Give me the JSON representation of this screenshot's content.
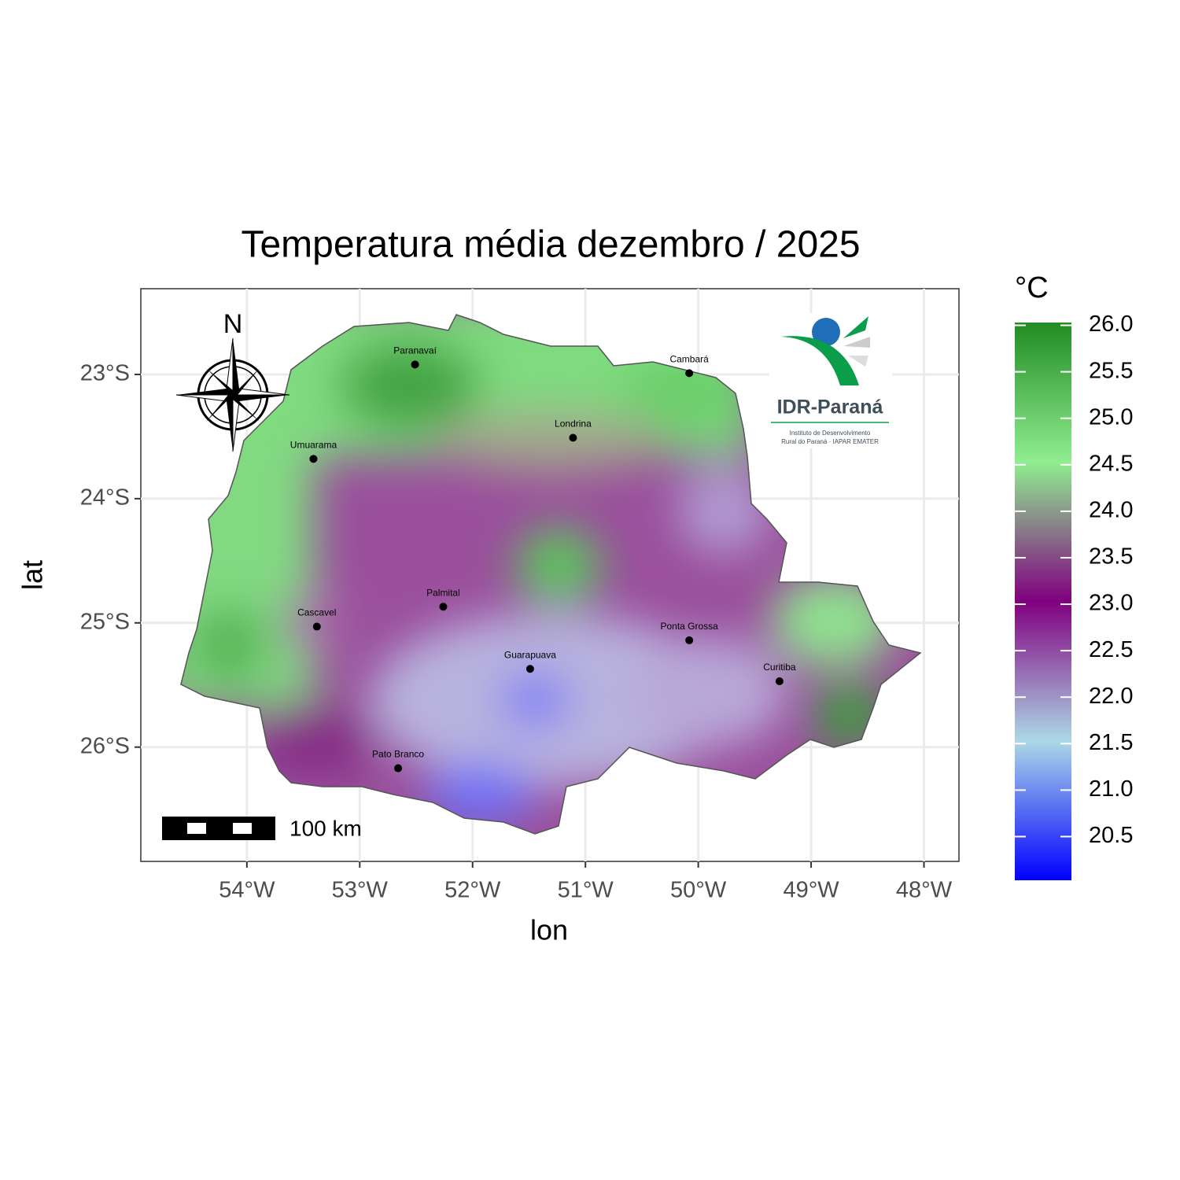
{
  "map": {
    "title": "Temperatura média dezembro / 2025",
    "x_label": "lon",
    "y_label": "lat",
    "xlim": [
      -54.94,
      -47.69
    ],
    "ylim": [
      -26.92,
      -22.31
    ],
    "xticks": [
      {
        "value": -54,
        "label": "54°W"
      },
      {
        "value": -53,
        "label": "53°W"
      },
      {
        "value": -52,
        "label": "52°W"
      },
      {
        "value": -51,
        "label": "51°W"
      },
      {
        "value": -50,
        "label": "50°W"
      },
      {
        "value": -49,
        "label": "49°W"
      },
      {
        "value": -48,
        "label": "48°W"
      }
    ],
    "yticks": [
      {
        "value": -23,
        "label": "23°S"
      },
      {
        "value": -24,
        "label": "24°S"
      },
      {
        "value": -25,
        "label": "25°S"
      },
      {
        "value": -26,
        "label": "26°S"
      }
    ],
    "grid": true,
    "cities": [
      {
        "name": "Paranavaí",
        "lon": -52.51,
        "lat": -22.92
      },
      {
        "name": "Cambará",
        "lon": -50.08,
        "lat": -22.99
      },
      {
        "name": "Londrina",
        "lon": -51.11,
        "lat": -23.51
      },
      {
        "name": "Umuarama",
        "lon": -53.41,
        "lat": -23.68
      },
      {
        "name": "Palmital",
        "lon": -52.26,
        "lat": -24.87
      },
      {
        "name": "Cascavel",
        "lon": -53.38,
        "lat": -25.03
      },
      {
        "name": "Ponta Grossa",
        "lon": -50.08,
        "lat": -25.14
      },
      {
        "name": "Guarapuava",
        "lon": -51.49,
        "lat": -25.37
      },
      {
        "name": "Curitiba",
        "lon": -49.28,
        "lat": -25.47
      },
      {
        "name": "Pato Branco",
        "lon": -52.66,
        "lat": -26.17
      }
    ],
    "legend": {
      "title": "°C",
      "range": [
        20.03,
        26.03
      ],
      "colors": [
        "#0000ff",
        "#add8e6",
        "#800080",
        "#90ee90",
        "#228b22"
      ],
      "ticks": [
        20.5,
        {
          "value": 21,
          "label": "21.0"
        },
        21.5,
        {
          "value": 22,
          "label": "22.0"
        },
        22.5,
        {
          "value": 23,
          "label": "23.0"
        },
        23.5,
        {
          "value": 24,
          "label": "24.0"
        },
        24.5,
        {
          "value": 25,
          "label": "25.0"
        },
        25.5,
        {
          "value": 26,
          "label": "26.0"
        }
      ]
    },
    "north_label": "N",
    "scale_bar_label": "100 km",
    "logo": {
      "name": "IDR-Paraná",
      "line1": "Instituto de Desenvolvimento",
      "line2": "Rural do Paraná · IAPAR EMATER"
    }
  }
}
